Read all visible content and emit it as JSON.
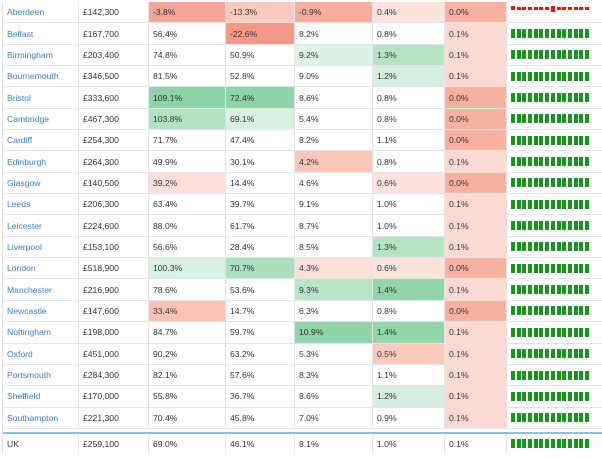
{
  "rows": [
    {
      "city": "Aberdeen",
      "price": "£142,300",
      "v1": "-3.8%",
      "v2": "-13.3%",
      "v3": "-0.9%",
      "v4": "0.4%",
      "v5": "0.0%",
      "bg": [
        "#f5a595",
        "#fbcabd",
        "#f7ad9e",
        "#fde3dc",
        "#f8b0a0"
      ],
      "spark": "neg"
    },
    {
      "city": "Belfast",
      "price": "£167,700",
      "v1": "56.4%",
      "v2": "-22.6%",
      "v3": "8.2%",
      "v4": "0.8%",
      "v5": "0.1%",
      "bg": [
        "",
        "#f4998a",
        "",
        "",
        "#fdd9d1"
      ],
      "spark": "pos"
    },
    {
      "city": "Birmingham",
      "price": "£203,400",
      "v1": "74.8%",
      "v2": "50.9%",
      "v3": "9.2%",
      "v4": "1.3%",
      "v5": "0.1%",
      "bg": [
        "",
        "",
        "#dff2e6",
        "#b4e3c6",
        "#fdd9d1"
      ],
      "spark": "pos"
    },
    {
      "city": "Bournemouth",
      "price": "£346,500",
      "v1": "81.5%",
      "v2": "52.8%",
      "v3": "9.0%",
      "v4": "1.2%",
      "v5": "0.1%",
      "bg": [
        "",
        "",
        "",
        "#d4efdf",
        "#fdd9d1"
      ],
      "spark": "pos"
    },
    {
      "city": "Bristol",
      "price": "£333,600",
      "v1": "109.1%",
      "v2": "72.4%",
      "v3": "8.6%",
      "v4": "0.8%",
      "v5": "0.0%",
      "bg": [
        "#8ed3a9",
        "#8ed3a9",
        "",
        "",
        "#f8b0a0"
      ],
      "spark": "pos"
    },
    {
      "city": "Cambridge",
      "price": "£467,300",
      "v1": "103.8%",
      "v2": "69.1%",
      "v3": "5.4%",
      "v4": "0.8%",
      "v5": "0.0%",
      "bg": [
        "#b1e2c3",
        "#d9f1e2",
        "",
        "",
        "#f8b0a0"
      ],
      "spark": "pos"
    },
    {
      "city": "Cardiff",
      "price": "£254,300",
      "v1": "71.7%",
      "v2": "47.4%",
      "v3": "8.2%",
      "v4": "1.1%",
      "v5": "0.0%",
      "bg": [
        "",
        "",
        "",
        "",
        "#f8b0a0"
      ],
      "spark": "pos"
    },
    {
      "city": "Edinburgh",
      "price": "£264,300",
      "v1": "49.9%",
      "v2": "30.1%",
      "v3": "4.2%",
      "v4": "0.8%",
      "v5": "0.1%",
      "bg": [
        "",
        "",
        "#fbc6ba",
        "",
        "#fdd9d1"
      ],
      "spark": "pos"
    },
    {
      "city": "Glasgow",
      "price": "£140,500",
      "v1": "39.2%",
      "v2": "14.4%",
      "v3": "4.6%",
      "v4": "0.6%",
      "v5": "0.0%",
      "bg": [
        "#fde0d9",
        "",
        "",
        "#fde3dc",
        "#f8b0a0"
      ],
      "spark": "pos"
    },
    {
      "city": "Leeds",
      "price": "£206,300",
      "v1": "63.4%",
      "v2": "39.7%",
      "v3": "9.1%",
      "v4": "1.0%",
      "v5": "0.1%",
      "bg": [
        "",
        "",
        "",
        "",
        "#fdd9d1"
      ],
      "spark": "pos"
    },
    {
      "city": "Leicester",
      "price": "£224,600",
      "v1": "88.0%",
      "v2": "61.7%",
      "v3": "8.7%",
      "v4": "1.0%",
      "v5": "0.1%",
      "bg": [
        "",
        "",
        "",
        "",
        "#fdd9d1"
      ],
      "spark": "pos"
    },
    {
      "city": "Liverpool",
      "price": "£153,100",
      "v1": "56.6%",
      "v2": "28.4%",
      "v3": "8.5%",
      "v4": "1.3%",
      "v5": "0.1%",
      "bg": [
        "",
        "",
        "",
        "#b4e3c6",
        "#fdd9d1"
      ],
      "spark": "pos"
    },
    {
      "city": "London",
      "price": "£518,900",
      "v1": "100.3%",
      "v2": "70.7%",
      "v3": "4.3%",
      "v4": "0.6%",
      "v5": "0.0%",
      "bg": [
        "#d9f1e2",
        "#a8dfbc",
        "#fde0d9",
        "#fde3dc",
        "#f8b0a0"
      ],
      "spark": "pos"
    },
    {
      "city": "Manchester",
      "price": "£216,900",
      "v1": "78.6%",
      "v2": "53.6%",
      "v3": "9.3%",
      "v4": "1.4%",
      "v5": "0.1%",
      "bg": [
        "",
        "",
        "#b8e5c9",
        "#92d5ab",
        "#fdd9d1"
      ],
      "spark": "pos"
    },
    {
      "city": "Newcastle",
      "price": "£147,600",
      "v1": "33.4%",
      "v2": "14.7%",
      "v3": "6.3%",
      "v4": "0.8%",
      "v5": "0.0%",
      "bg": [
        "#fbc2b5",
        "",
        "",
        "",
        "#f8b0a0"
      ],
      "spark": "pos"
    },
    {
      "city": "Nottingham",
      "price": "£198,000",
      "v1": "84.7%",
      "v2": "59.7%",
      "v3": "10.9%",
      "v4": "1.4%",
      "v5": "0.1%",
      "bg": [
        "",
        "",
        "#8ed3a9",
        "#92d5ab",
        "#fdd9d1"
      ],
      "spark": "pos"
    },
    {
      "city": "Oxford",
      "price": "£451,000",
      "v1": "90.2%",
      "v2": "63.2%",
      "v3": "5.3%",
      "v4": "0.5%",
      "v5": "0.1%",
      "bg": [
        "",
        "",
        "",
        "#fbcabd",
        "#fdd9d1"
      ],
      "spark": "pos"
    },
    {
      "city": "Portsmouth",
      "price": "£284,300",
      "v1": "82.1%",
      "v2": "57.6%",
      "v3": "8.3%",
      "v4": "1.1%",
      "v5": "0.1%",
      "bg": [
        "",
        "",
        "",
        "",
        "#fdd9d1"
      ],
      "spark": "pos"
    },
    {
      "city": "Sheffield",
      "price": "£170,000",
      "v1": "55.8%",
      "v2": "36.7%",
      "v3": "8.6%",
      "v4": "1.2%",
      "v5": "0.1%",
      "bg": [
        "",
        "",
        "",
        "#d4efdf",
        "#fdd9d1"
      ],
      "spark": "pos"
    },
    {
      "city": "Southampton",
      "price": "£221,300",
      "v1": "70.4%",
      "v2": "45.8%",
      "v3": "7.0%",
      "v4": "0.9%",
      "v5": "0.1%",
      "bg": [
        "",
        "",
        "",
        "",
        "#fdd9d1"
      ],
      "spark": "pos"
    }
  ],
  "total": {
    "city": "UK",
    "price": "£259,100",
    "v1": "69.0%",
    "v2": "46.1%",
    "v3": "8.1%",
    "v4": "1.0%",
    "v5": "0.1%",
    "bg": [
      "",
      "",
      "",
      "",
      ""
    ],
    "spark": "pos"
  },
  "colors": {
    "link": "#3a7ec2",
    "spark_pos": "#18961c",
    "spark_neg": "#e8140a",
    "total_border": "#8fbfe0"
  },
  "sparkline_patterns": {
    "pos": [
      -0.85,
      -0.85,
      -0.85,
      -0.85,
      -0.85,
      -0.85,
      -0.85,
      -0.85,
      -0.85,
      -0.85,
      -0.85,
      -0.85,
      -0.85,
      -0.85
    ],
    "neg": [
      -0.3,
      0.5,
      0.5,
      0.5,
      0.5,
      0.5,
      0.5,
      -0.25,
      0.5,
      0.5,
      0.5,
      0.5,
      0.5,
      0.5
    ],
    "neg_note": "positive values drawn below baseline"
  }
}
